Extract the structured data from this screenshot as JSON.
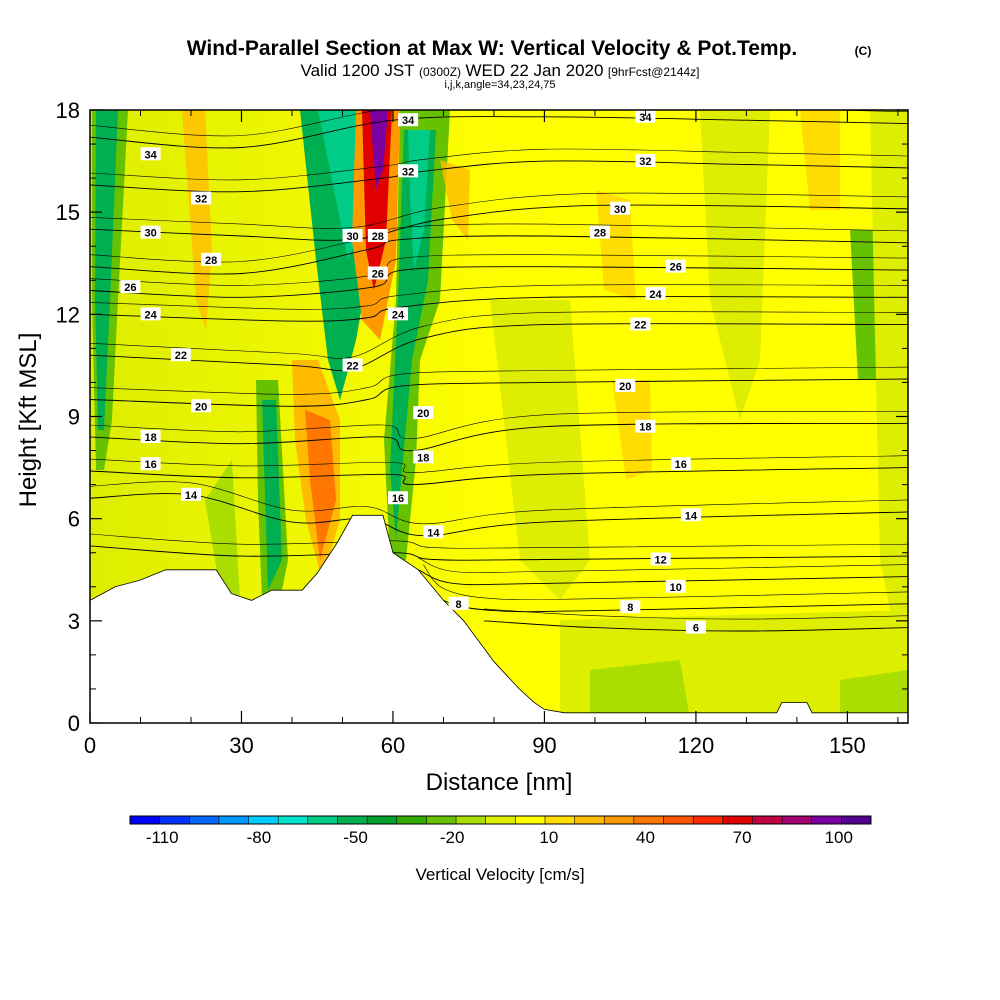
{
  "chart_data": {
    "type": "heatmap",
    "title": "Wind-Parallel Section at Max W: Vertical Velocity & Pot.Temp.",
    "title_mark": "(C)",
    "subtitle_parts": [
      "Valid 1200 JST",
      "(0300Z)",
      "WED 22 Jan 2020",
      "[9hrFcst@2144z]"
    ],
    "subtitle2": "i,j,k,angle=34,23,24,75",
    "xlabel": "Distance [nm]",
    "ylabel": "Height [Kft MSL]",
    "xlim": [
      0,
      162
    ],
    "ylim": [
      0,
      18
    ],
    "x_ticks": [
      "0",
      "30",
      "60",
      "90",
      "120",
      "150"
    ],
    "x_tick_values": [
      0,
      30,
      60,
      90,
      120,
      150
    ],
    "y_ticks": [
      "0",
      "3",
      "6",
      "9",
      "12",
      "15",
      "18"
    ],
    "y_tick_values": [
      0,
      3,
      6,
      9,
      12,
      15,
      18
    ],
    "colorbar": {
      "label": "Vertical Velocity [cm/s]",
      "range": [
        -120,
        110
      ],
      "tick_labels": [
        "-110",
        "-80",
        "-50",
        "-20",
        "10",
        "40",
        "70",
        "100"
      ],
      "tick_values": [
        -110,
        -80,
        -50,
        -20,
        10,
        40,
        70,
        100
      ],
      "colors": [
        "#0000ff",
        "#0033ff",
        "#0066ff",
        "#0099ff",
        "#00ccff",
        "#00e5cc",
        "#00cc88",
        "#00b050",
        "#00a030",
        "#33aa00",
        "#66c200",
        "#aadd00",
        "#ddee00",
        "#ffff00",
        "#ffdd00",
        "#ffbb00",
        "#ff9900",
        "#ff7700",
        "#ff5500",
        "#ff2a00",
        "#e00000",
        "#c00040",
        "#a00070",
        "#7a00a0",
        "#520090"
      ]
    },
    "terrain_profile": [
      [
        0,
        3.6
      ],
      [
        5,
        4.0
      ],
      [
        10,
        4.2
      ],
      [
        15,
        4.5
      ],
      [
        25,
        4.5
      ],
      [
        28,
        3.8
      ],
      [
        32,
        3.6
      ],
      [
        36,
        3.9
      ],
      [
        42,
        3.9
      ],
      [
        45,
        4.4
      ],
      [
        49,
        5.3
      ],
      [
        52,
        6.1
      ],
      [
        58,
        6.1
      ],
      [
        60,
        5.0
      ],
      [
        65,
        4.5
      ],
      [
        70,
        3.6
      ],
      [
        74,
        3.0
      ],
      [
        80,
        1.8
      ],
      [
        85,
        1.0
      ],
      [
        88,
        0.6
      ],
      [
        90,
        0.4
      ],
      [
        94,
        0.3
      ],
      [
        136,
        0.3
      ],
      [
        137,
        0.6
      ],
      [
        142,
        0.6
      ],
      [
        143,
        0.3
      ],
      [
        162,
        0.3
      ]
    ],
    "theta_contours": [
      {
        "label": "34",
        "points": [
          [
            0,
            17.2
          ],
          [
            30,
            16.9
          ],
          [
            60,
            17.7
          ],
          [
            90,
            17.8
          ],
          [
            130,
            17.7
          ],
          [
            162,
            17.6
          ]
        ],
        "label_positions": [
          [
            12,
            16.7
          ],
          [
            63,
            17.7
          ],
          [
            110,
            17.8
          ]
        ]
      },
      {
        "label": "32",
        "points": [
          [
            0,
            15.8
          ],
          [
            30,
            15.6
          ],
          [
            58,
            16.0
          ],
          [
            66,
            16.2
          ],
          [
            90,
            16.5
          ],
          [
            130,
            16.4
          ],
          [
            162,
            16.3
          ]
        ],
        "label_positions": [
          [
            22,
            15.4
          ],
          [
            63,
            16.2
          ],
          [
            110,
            16.5
          ]
        ]
      },
      {
        "label": "30",
        "points": [
          [
            0,
            14.5
          ],
          [
            30,
            14.3
          ],
          [
            52,
            14.2
          ],
          [
            70,
            14.8
          ],
          [
            100,
            15.2
          ],
          [
            162,
            15.1
          ]
        ],
        "label_positions": [
          [
            12,
            14.4
          ],
          [
            52,
            14.3
          ],
          [
            105,
            15.1
          ]
        ]
      },
      {
        "label": "28",
        "points": [
          [
            0,
            13.4
          ],
          [
            30,
            13.2
          ],
          [
            55,
            13.9
          ],
          [
            62,
            14.2
          ],
          [
            90,
            14.3
          ],
          [
            162,
            14.1
          ]
        ],
        "label_positions": [
          [
            24,
            13.6
          ],
          [
            57,
            14.3
          ],
          [
            101,
            14.4
          ]
        ]
      },
      {
        "label": "26",
        "points": [
          [
            0,
            12.7
          ],
          [
            30,
            12.5
          ],
          [
            56,
            12.8
          ],
          [
            62,
            13.3
          ],
          [
            90,
            13.4
          ],
          [
            162,
            13.3
          ]
        ],
        "label_positions": [
          [
            8,
            12.8
          ],
          [
            57,
            13.2
          ],
          [
            116,
            13.4
          ]
        ]
      },
      {
        "label": "24",
        "points": [
          [
            0,
            12.0
          ],
          [
            40,
            11.8
          ],
          [
            55,
            11.9
          ],
          [
            61,
            12.2
          ],
          [
            90,
            12.5
          ],
          [
            162,
            12.5
          ]
        ],
        "label_positions": [
          [
            12,
            12.0
          ],
          [
            61,
            12.0
          ],
          [
            112,
            12.6
          ]
        ]
      },
      {
        "label": "22",
        "points": [
          [
            0,
            10.8
          ],
          [
            40,
            10.5
          ],
          [
            52,
            10.4
          ],
          [
            66,
            11.3
          ],
          [
            90,
            11.7
          ],
          [
            162,
            11.7
          ]
        ],
        "label_positions": [
          [
            18,
            10.8
          ],
          [
            52,
            10.5
          ],
          [
            109,
            11.7
          ]
        ]
      },
      {
        "label": "20",
        "points": [
          [
            0,
            9.5
          ],
          [
            40,
            9.3
          ],
          [
            55,
            9.5
          ],
          [
            62,
            9.9
          ],
          [
            90,
            10.0
          ],
          [
            162,
            10.1
          ]
        ],
        "label_positions": [
          [
            22,
            9.3
          ],
          [
            66,
            9.1
          ],
          [
            106,
            9.9
          ]
        ]
      },
      {
        "label": "18",
        "points": [
          [
            0,
            8.4
          ],
          [
            30,
            8.2
          ],
          [
            58,
            8.4
          ],
          [
            64,
            8.0
          ],
          [
            90,
            8.7
          ],
          [
            162,
            8.8
          ]
        ],
        "label_positions": [
          [
            12,
            8.4
          ],
          [
            66,
            7.8
          ],
          [
            110,
            8.7
          ]
        ]
      },
      {
        "label": "16",
        "points": [
          [
            0,
            7.4
          ],
          [
            30,
            7.2
          ],
          [
            60,
            7.3
          ],
          [
            64,
            7.0
          ],
          [
            90,
            7.3
          ],
          [
            162,
            7.5
          ]
        ],
        "label_positions": [
          [
            12,
            7.6
          ],
          [
            61,
            6.6
          ],
          [
            117,
            7.6
          ]
        ]
      },
      {
        "label": "14",
        "points": [
          [
            0,
            6.6
          ],
          [
            20,
            6.7
          ],
          [
            40,
            5.9
          ],
          [
            55,
            6.0
          ],
          [
            66,
            5.5
          ],
          [
            90,
            5.9
          ],
          [
            162,
            6.2
          ]
        ],
        "label_positions": [
          [
            20,
            6.7
          ],
          [
            68,
            5.6
          ],
          [
            119,
            6.1
          ]
        ]
      },
      {
        "label": "12",
        "points": [
          [
            0,
            5.2
          ],
          [
            30,
            4.9
          ],
          [
            60,
            5.0
          ],
          [
            68,
            4.8
          ],
          [
            90,
            4.8
          ],
          [
            162,
            4.9
          ]
        ],
        "label_positions": [
          [
            113,
            4.8
          ]
        ]
      },
      {
        "label": "10",
        "points": [
          [
            65,
            4.5
          ],
          [
            72,
            4.1
          ],
          [
            90,
            4.1
          ],
          [
            162,
            4.3
          ]
        ],
        "label_positions": [
          [
            116,
            4.0
          ]
        ]
      },
      {
        "label": "8",
        "points": [
          [
            66,
            4.3
          ],
          [
            70,
            3.6
          ],
          [
            80,
            3.3
          ],
          [
            100,
            3.3
          ],
          [
            162,
            3.5
          ]
        ],
        "label_positions": [
          [
            73,
            3.5
          ],
          [
            107,
            3.4
          ]
        ]
      },
      {
        "label": "6",
        "points": [
          [
            78,
            3.0
          ],
          [
            100,
            2.8
          ],
          [
            130,
            2.7
          ],
          [
            162,
            2.8
          ]
        ],
        "label_positions": [
          [
            120,
            2.8
          ]
        ]
      }
    ]
  }
}
